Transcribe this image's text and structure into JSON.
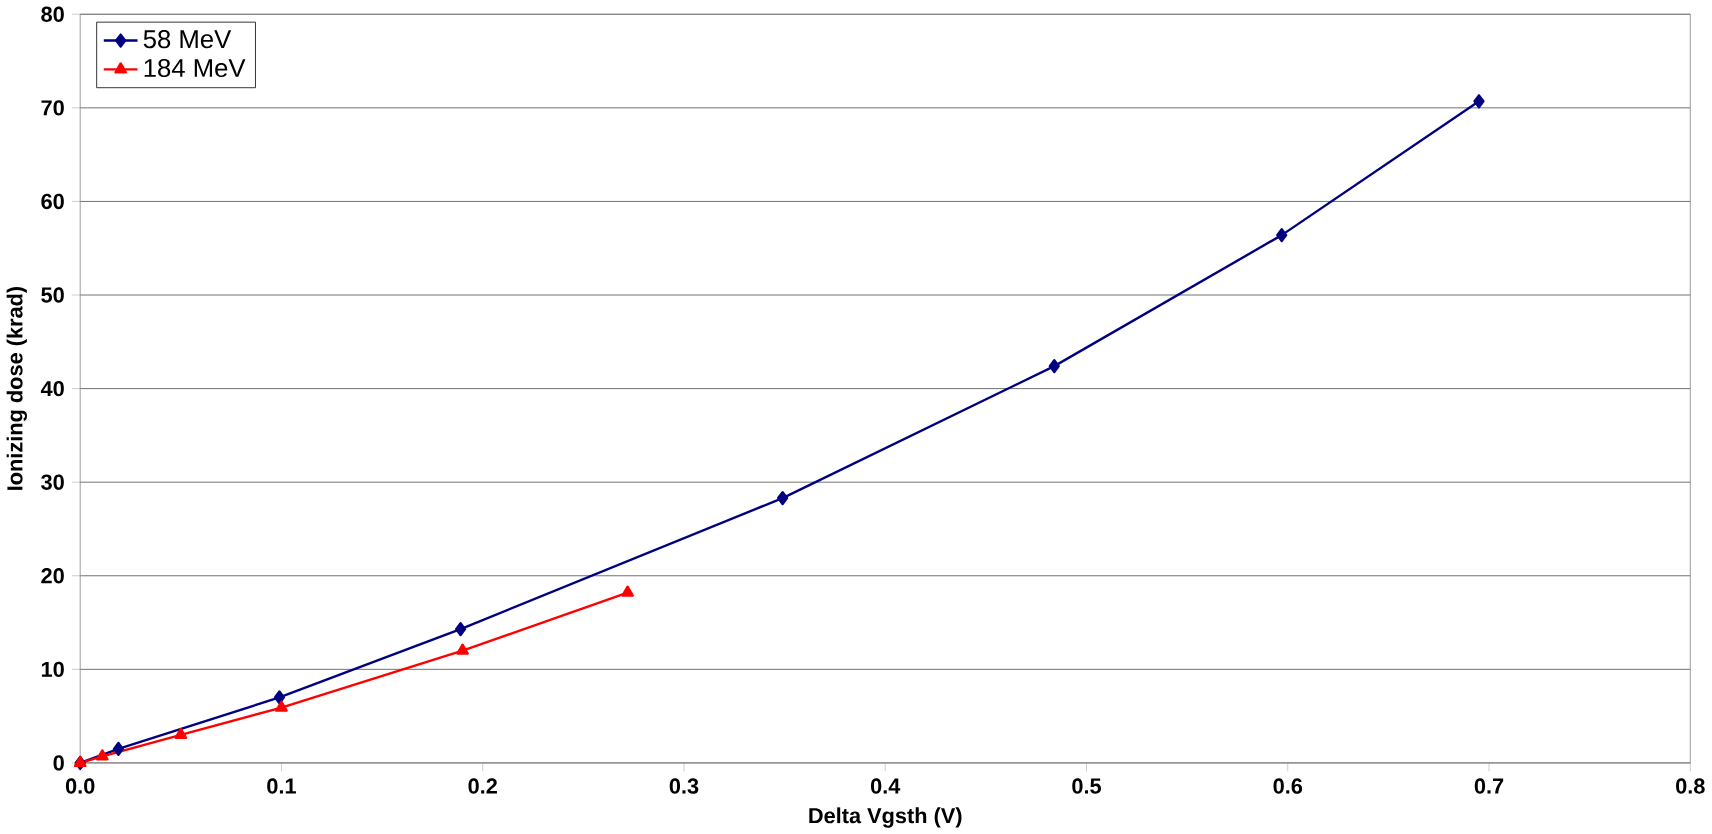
{
  "chart_data": {
    "type": "line",
    "xlabel": "Delta Vgsth (V)",
    "ylabel": "Ionizing dose (krad)",
    "xlim": [
      0,
      0.8
    ],
    "ylim": [
      0,
      80
    ],
    "xticks": [
      {
        "value": 0,
        "label": "0.0"
      },
      {
        "value": 0.1,
        "label": "0.1"
      },
      {
        "value": 0.2,
        "label": "0.2"
      },
      {
        "value": 0.3,
        "label": "0.3"
      },
      {
        "value": 0.4,
        "label": "0.4"
      },
      {
        "value": 0.5,
        "label": "0.5"
      },
      {
        "value": 0.6,
        "label": "0.6"
      },
      {
        "value": 0.7,
        "label": "0.7"
      },
      {
        "value": 0.8,
        "label": "0.8"
      }
    ],
    "yticks": [
      0,
      10,
      20,
      30,
      40,
      50,
      60,
      70,
      80
    ],
    "grid": "y",
    "legend": "top left",
    "series": [
      {
        "name": "58 MeV",
        "color": "#000080",
        "marker": "diamond",
        "x": [
          0,
          0.019,
          0.099,
          0.189,
          0.349,
          0.484,
          0.597,
          0.695
        ],
        "values": [
          0,
          1.5,
          7.0,
          14.3,
          28.3,
          42.4,
          56.4,
          70.7
        ]
      },
      {
        "name": "184 MeV",
        "color": "#ff0000",
        "marker": "triangle",
        "x": [
          0,
          0.011,
          0.05,
          0.1,
          0.19,
          0.272
        ],
        "values": [
          0,
          0.7,
          3.0,
          5.9,
          12.0,
          18.2
        ]
      }
    ]
  }
}
